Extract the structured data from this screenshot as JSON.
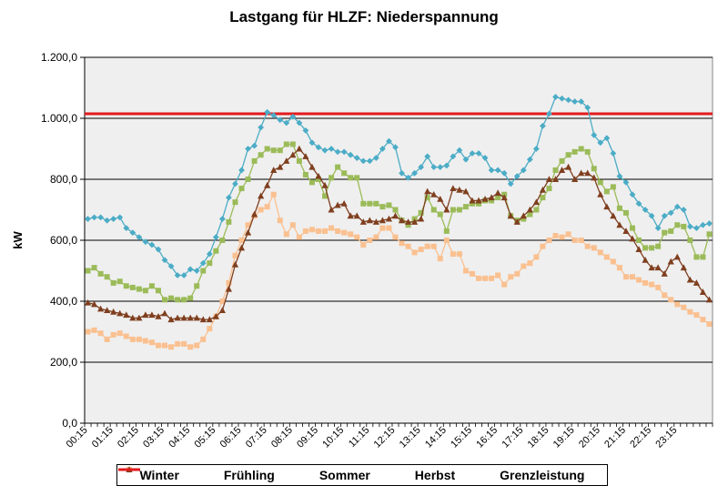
{
  "chart_data": {
    "type": "line",
    "title": "Lastgang für HLZF: Niederspannung",
    "ylabel": "kW",
    "xlabel": "",
    "ylim": [
      0,
      1200
    ],
    "y_ticks": [
      "0,0",
      "200,0",
      "400,0",
      "600,0",
      "800,0",
      "1.000,0",
      "1.200,0"
    ],
    "x_tick_labels": [
      "00:15",
      "01:15",
      "02:15",
      "03:15",
      "04:15",
      "05:15",
      "06:15",
      "07:15",
      "08:15",
      "09:15",
      "10:15",
      "11:15",
      "12:15",
      "13:15",
      "14:15",
      "15:15",
      "16:15",
      "17:15",
      "18:15",
      "19:15",
      "20:15",
      "21:15",
      "22:15",
      "23:15"
    ],
    "grid": true,
    "legend_position": "bottom",
    "x_interval": "15 min, 00:15 to 24:00 (96 values)",
    "series": [
      {
        "name": "Winter",
        "color": "#4BACC6",
        "marker": "diamond",
        "values": [
          670,
          675,
          675,
          665,
          670,
          675,
          640,
          625,
          610,
          595,
          585,
          570,
          535,
          515,
          485,
          485,
          505,
          500,
          525,
          555,
          610,
          670,
          740,
          785,
          830,
          900,
          910,
          970,
          1020,
          1010,
          995,
          985,
          1005,
          985,
          960,
          920,
          905,
          895,
          900,
          890,
          890,
          880,
          870,
          860,
          860,
          870,
          900,
          925,
          905,
          820,
          805,
          820,
          840,
          875,
          840,
          840,
          845,
          875,
          895,
          865,
          885,
          885,
          870,
          830,
          830,
          820,
          785,
          810,
          830,
          865,
          900,
          975,
          1015,
          1070,
          1065,
          1060,
          1055,
          1055,
          1035,
          945,
          920,
          935,
          885,
          810,
          790,
          750,
          720,
          700,
          680,
          640,
          680,
          690,
          710,
          700,
          645,
          640,
          650,
          655
        ]
      },
      {
        "name": "Frühling",
        "color": "#9BBB59",
        "marker": "square",
        "values": [
          500,
          510,
          490,
          480,
          460,
          465,
          450,
          445,
          440,
          435,
          450,
          435,
          405,
          410,
          405,
          405,
          410,
          450,
          500,
          525,
          565,
          600,
          660,
          725,
          770,
          800,
          860,
          880,
          900,
          895,
          895,
          915,
          915,
          860,
          815,
          790,
          800,
          745,
          805,
          840,
          820,
          805,
          805,
          720,
          720,
          720,
          710,
          715,
          700,
          665,
          650,
          670,
          690,
          740,
          700,
          685,
          630,
          700,
          700,
          710,
          720,
          720,
          730,
          730,
          740,
          750,
          680,
          665,
          670,
          685,
          700,
          740,
          770,
          830,
          860,
          880,
          890,
          900,
          890,
          835,
          790,
          760,
          775,
          705,
          690,
          640,
          600,
          575,
          575,
          580,
          625,
          630,
          650,
          645,
          600,
          545,
          545,
          620
        ]
      },
      {
        "name": "Sommer",
        "color": "#FAC090",
        "marker": "square",
        "values": [
          300,
          305,
          295,
          275,
          290,
          295,
          285,
          275,
          275,
          270,
          265,
          255,
          255,
          250,
          260,
          260,
          250,
          255,
          275,
          310,
          350,
          400,
          460,
          550,
          600,
          650,
          680,
          700,
          710,
          750,
          665,
          620,
          650,
          610,
          630,
          635,
          630,
          630,
          640,
          630,
          625,
          620,
          610,
          585,
          600,
          610,
          640,
          640,
          610,
          590,
          580,
          560,
          570,
          580,
          580,
          540,
          600,
          555,
          555,
          500,
          490,
          475,
          475,
          475,
          485,
          455,
          480,
          490,
          515,
          525,
          545,
          580,
          600,
          615,
          610,
          620,
          600,
          600,
          580,
          575,
          560,
          545,
          530,
          510,
          480,
          480,
          470,
          460,
          455,
          445,
          420,
          405,
          390,
          380,
          365,
          355,
          340,
          325
        ]
      },
      {
        "name": "Herbst",
        "color": "#7F3F1F",
        "marker": "triangle",
        "values": [
          395,
          390,
          375,
          370,
          365,
          360,
          355,
          345,
          345,
          355,
          355,
          350,
          360,
          340,
          345,
          345,
          345,
          345,
          340,
          340,
          350,
          370,
          440,
          520,
          575,
          625,
          685,
          745,
          780,
          830,
          840,
          860,
          880,
          900,
          875,
          840,
          810,
          780,
          700,
          715,
          720,
          680,
          680,
          660,
          665,
          660,
          665,
          670,
          680,
          665,
          660,
          660,
          670,
          760,
          750,
          735,
          700,
          770,
          765,
          760,
          730,
          730,
          735,
          740,
          755,
          740,
          680,
          660,
          680,
          700,
          725,
          765,
          800,
          800,
          830,
          840,
          800,
          820,
          820,
          805,
          750,
          710,
          680,
          650,
          630,
          605,
          570,
          535,
          510,
          510,
          490,
          530,
          545,
          510,
          470,
          460,
          430,
          405
        ]
      }
    ],
    "reference_line": {
      "name": "Grenzleistung",
      "value": 1015,
      "color": "#E31A1C"
    }
  }
}
